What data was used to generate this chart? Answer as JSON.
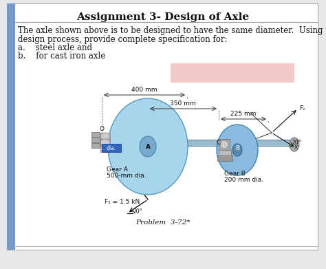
{
  "title": "Assignment 3- Design of Axle",
  "body_text_line1": "The axle shown above is to be designed to have the same diameter.  Using the",
  "body_text_line2": "design process, provide complete specification for:",
  "list_a": "a.    steel axle and",
  "list_b": "b.    for cast iron axle",
  "problem_label": "Problem  3-72*",
  "gear_a_label": "Gear A",
  "gear_a_dia": "500-mm dia.",
  "gear_b_label": "Gear B",
  "gear_b_dia": "200 mm dia.",
  "dim_400": "400 mm",
  "dim_350": "350 mm",
  "dim_225": "225 mm",
  "force_label": "F₂ = 1.5 kN",
  "angle_label": "20°",
  "Fv_label": "Fᵥ",
  "bg_color": "#e8e8e8",
  "page_bg": "#ffffff",
  "sidebar_color": "#7799cc",
  "gear_A_face": "#a8d4ec",
  "gear_A_edge": "#5599bb",
  "gear_B_face": "#88bbdd",
  "gear_B_edge": "#4488aa",
  "shaft_color": "#99bbcc",
  "bearing_color": "#bbbbbb",
  "bearing_edge": "#888888",
  "highlight_color": "#f0b8b8",
  "blue_rect": "#3366bb",
  "arrow_color": "#111111",
  "text_color": "#111111",
  "dim_line_color": "#333333",
  "title_fontsize": 11,
  "body_fontsize": 8.5,
  "label_fontsize": 6.5,
  "small_fontsize": 5.5
}
